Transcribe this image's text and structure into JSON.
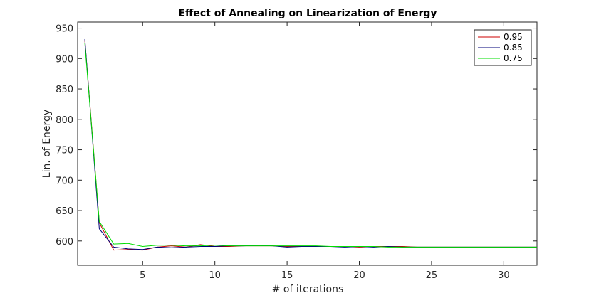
{
  "chart_data": {
    "type": "line",
    "title": "Effect of Annealing on Linearization of Energy",
    "xlabel": "# of iterations",
    "ylabel": "Lin. of Energy",
    "xlim": [
      0.5,
      32.3
    ],
    "ylim": [
      560,
      960
    ],
    "xticks": [
      5,
      10,
      15,
      20,
      25,
      30
    ],
    "yticks": [
      600,
      650,
      700,
      750,
      800,
      850,
      900,
      950
    ],
    "grid": false,
    "legend_position": "top-right",
    "x": [
      1,
      2,
      3,
      4,
      5,
      6,
      7,
      8,
      9,
      10,
      11,
      12,
      13,
      14,
      15,
      16,
      17,
      18,
      19,
      20,
      21,
      22,
      23,
      24,
      25,
      26,
      27,
      28,
      29,
      30,
      31,
      32,
      32.3
    ],
    "series": [
      {
        "name": "0.95",
        "color": "#cc0000",
        "values": [
          930,
          630,
          585,
          586,
          585,
          590,
          592,
          590,
          594,
          591,
          591,
          592,
          592,
          592,
          591,
          591,
          591,
          591,
          591,
          590,
          591,
          591,
          591,
          590,
          590,
          590,
          590,
          590,
          590,
          590,
          590,
          590,
          590
        ]
      },
      {
        "name": "0.85",
        "color": "#00007a",
        "values": [
          932,
          620,
          590,
          587,
          586,
          590,
          589,
          590,
          591,
          591,
          592,
          592,
          593,
          592,
          590,
          591,
          591,
          591,
          590,
          591,
          590,
          591,
          590,
          590,
          590,
          590,
          590,
          590,
          590,
          590,
          590,
          590,
          590
        ]
      },
      {
        "name": "0.75",
        "color": "#00dd00",
        "values": [
          925,
          632,
          595,
          596,
          591,
          593,
          593,
          592,
          592,
          593,
          592,
          592,
          592,
          592,
          592,
          592,
          592,
          591,
          591,
          591,
          591,
          590,
          590,
          590,
          590,
          590,
          590,
          590,
          590,
          590,
          590,
          590,
          590
        ]
      }
    ]
  }
}
